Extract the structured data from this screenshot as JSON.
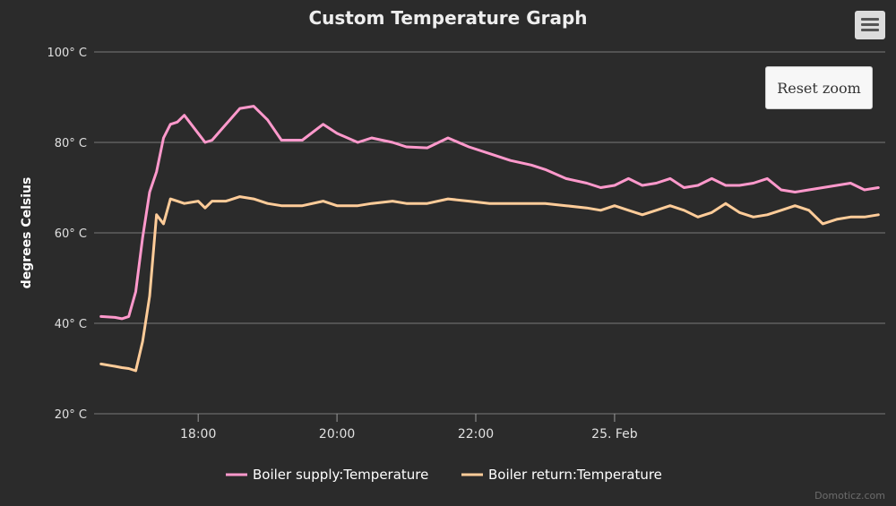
{
  "chart_data": {
    "type": "line",
    "title": "Custom Temperature Graph",
    "ylabel": "degrees Celsius",
    "xlabel": "",
    "ylim": [
      20,
      100
    ],
    "yticks": [
      20,
      40,
      60,
      80,
      100
    ],
    "ytick_labels": [
      "20° C",
      "40° C",
      "60° C",
      "80° C",
      "100° C"
    ],
    "xlim": [
      16.5,
      27.9
    ],
    "xticks": [
      18,
      20,
      22,
      24
    ],
    "xtick_labels": [
      "18:00",
      "20:00",
      "22:00",
      "25. Feb"
    ],
    "legend_position": "bottom",
    "series": [
      {
        "name": "Boiler supply:Temperature",
        "color": "#ff99cc",
        "x": [
          16.6,
          16.8,
          16.9,
          17.0,
          17.1,
          17.2,
          17.3,
          17.4,
          17.5,
          17.6,
          17.7,
          17.8,
          18.0,
          18.1,
          18.2,
          18.4,
          18.6,
          18.8,
          19.0,
          19.2,
          19.5,
          19.8,
          20.0,
          20.3,
          20.5,
          20.8,
          21.0,
          21.3,
          21.6,
          21.9,
          22.2,
          22.5,
          22.8,
          23.0,
          23.3,
          23.6,
          23.8,
          24.0,
          24.2,
          24.4,
          24.6,
          24.8,
          25.0,
          25.2,
          25.4,
          25.6,
          25.8,
          26.0,
          26.2,
          26.4,
          26.6,
          26.8,
          27.0,
          27.2,
          27.4,
          27.6,
          27.8
        ],
        "values": [
          41.5,
          41.3,
          41.0,
          41.5,
          47,
          59,
          69,
          73.5,
          81,
          84,
          84.5,
          86,
          82,
          80,
          80.5,
          84,
          87.5,
          88,
          85,
          80.5,
          80.5,
          84,
          82,
          80,
          81,
          80,
          79,
          78.8,
          81,
          79,
          77.5,
          76,
          75,
          74,
          72,
          71,
          70,
          70.5,
          72,
          70.5,
          71,
          72,
          70,
          70.5,
          72,
          70.5,
          70.5,
          71,
          72,
          69.5,
          69,
          69.5,
          70,
          70.5,
          71,
          69.5,
          70
        ]
      },
      {
        "name": "Boiler return:Temperature",
        "color": "#ffcc99",
        "x": [
          16.6,
          16.8,
          16.9,
          17.0,
          17.1,
          17.2,
          17.3,
          17.4,
          17.5,
          17.6,
          17.7,
          17.8,
          18.0,
          18.1,
          18.2,
          18.4,
          18.6,
          18.8,
          19.0,
          19.2,
          19.5,
          19.8,
          20.0,
          20.3,
          20.5,
          20.8,
          21.0,
          21.3,
          21.6,
          21.9,
          22.2,
          22.5,
          22.8,
          23.0,
          23.3,
          23.6,
          23.8,
          24.0,
          24.2,
          24.4,
          24.6,
          24.8,
          25.0,
          25.2,
          25.4,
          25.6,
          25.8,
          26.0,
          26.2,
          26.4,
          26.6,
          26.8,
          27.0,
          27.2,
          27.4,
          27.6,
          27.8
        ],
        "values": [
          31,
          30.5,
          30.2,
          30,
          29.5,
          36,
          46,
          64,
          62,
          67.5,
          67,
          66.5,
          67,
          65.5,
          67,
          67,
          68,
          67.5,
          66.5,
          66,
          66,
          67,
          66,
          66,
          66.5,
          67,
          66.5,
          66.5,
          67.5,
          67,
          66.5,
          66.5,
          66.5,
          66.5,
          66,
          65.5,
          65,
          66,
          65,
          64,
          65,
          66,
          65,
          63.5,
          64.5,
          66.5,
          64.5,
          63.5,
          64,
          65,
          66,
          65,
          62,
          63,
          63.5,
          63.5,
          64
        ]
      }
    ]
  },
  "toolbar": {
    "reset_zoom_label": "Reset zoom"
  },
  "credit": "Domoticz.com"
}
